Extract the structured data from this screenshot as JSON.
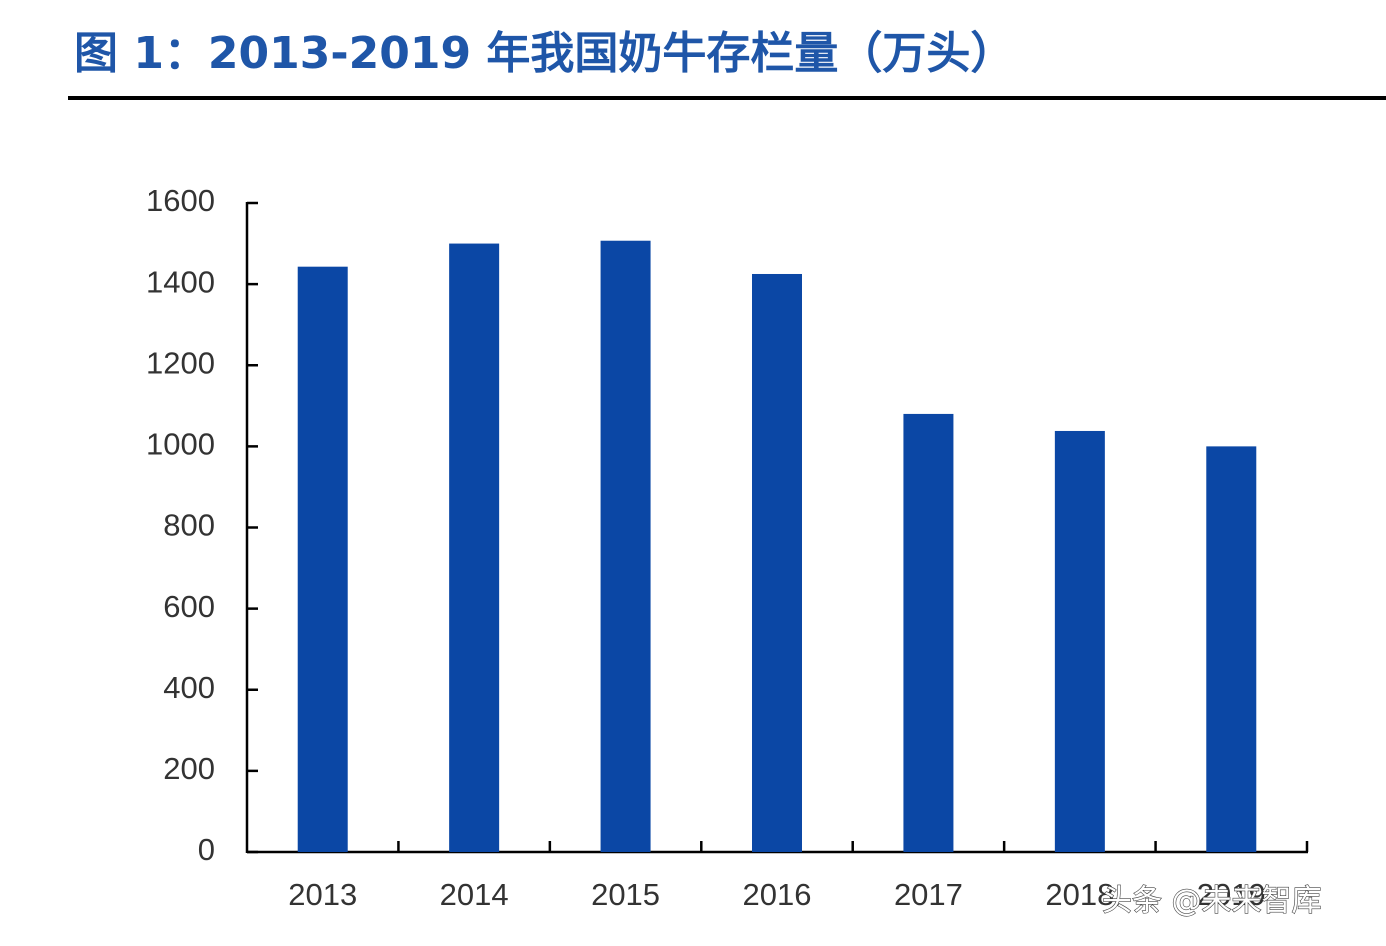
{
  "chart_data": {
    "type": "bar",
    "title": "图 1：2013-2019 年我国奶牛存栏量（万头）",
    "categories": [
      "2013",
      "2014",
      "2015",
      "2016",
      "2017",
      "2018",
      "2019"
    ],
    "values": [
      1443,
      1500,
      1507,
      1425,
      1080,
      1038,
      1000
    ],
    "color": "#0b47a5",
    "ylim": [
      0,
      1600
    ],
    "yticks": [
      0,
      200,
      400,
      600,
      800,
      1000,
      1200,
      1400,
      1600
    ],
    "grid": false
  },
  "watermark": "头条 @未来智库"
}
